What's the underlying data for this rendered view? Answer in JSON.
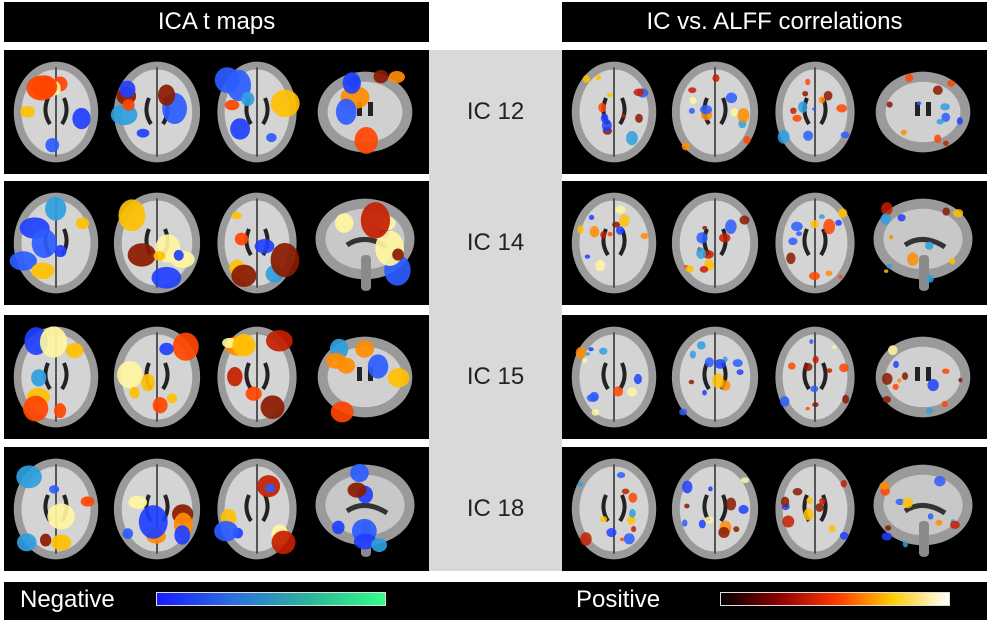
{
  "headers": {
    "left": "ICA t maps",
    "right": "IC vs. ALFF correlations"
  },
  "rows": [
    {
      "label": "IC 12"
    },
    {
      "label": "IC 14"
    },
    {
      "label": "IC 15"
    },
    {
      "label": "IC 18"
    }
  ],
  "colorbar": {
    "negative_label": "Negative",
    "positive_label": "Positive",
    "negative_colors": [
      "#1a1aff",
      "#2a6fe0",
      "#2bb59a",
      "#33ff88"
    ],
    "positive_colors": [
      "#000000",
      "#8b0000",
      "#ff3300",
      "#ffcc00",
      "#ffffff"
    ]
  }
}
